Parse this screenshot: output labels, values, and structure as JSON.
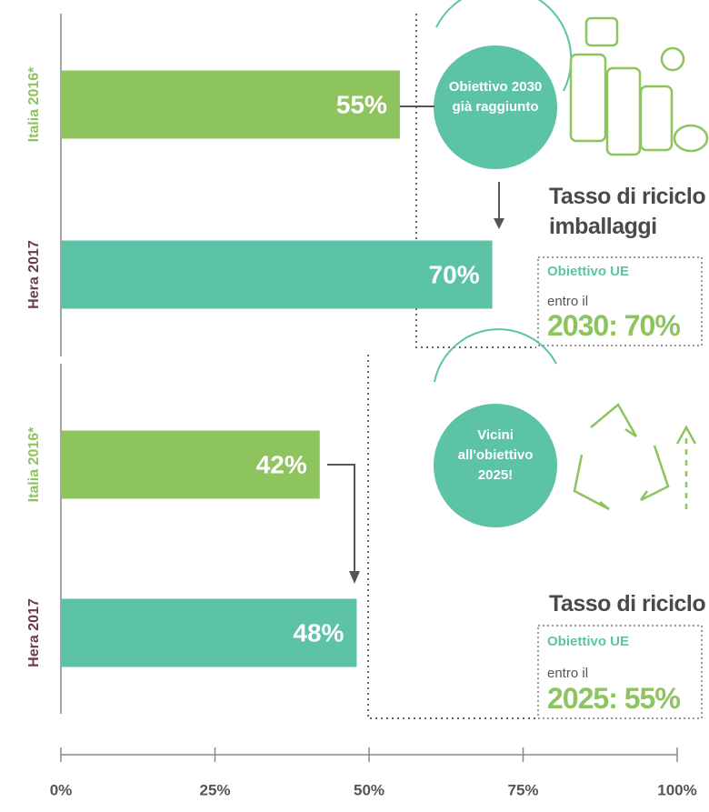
{
  "chart_data": [
    {
      "type": "bar",
      "orientation": "horizontal",
      "categories": [
        "Italia 2016*",
        "Hera 2017"
      ],
      "values": [
        55,
        70
      ],
      "value_labels": [
        "55%",
        "70%"
      ],
      "colors": [
        "#8dc45e",
        "#5cc3a7"
      ],
      "category_colors": [
        "#8dc45e",
        "#6e3b4c"
      ],
      "xlim": [
        0,
        100
      ],
      "annotations": {
        "bubble": "Obiettivo 2030 già raggiunto",
        "heading": "Tasso di riciclo imballaggi",
        "box_label": "Obiettivo UE",
        "box_text": "entro il",
        "box_target": "2030: 70%"
      }
    },
    {
      "type": "bar",
      "orientation": "horizontal",
      "categories": [
        "Italia 2016*",
        "Hera 2017"
      ],
      "values": [
        42,
        48
      ],
      "value_labels": [
        "42%",
        "48%"
      ],
      "colors": [
        "#8dc45e",
        "#5cc3a7"
      ],
      "category_colors": [
        "#8dc45e",
        "#6e3b4c"
      ],
      "xlim": [
        0,
        100
      ],
      "xticks": [
        {
          "value": 0,
          "label": "0%"
        },
        {
          "value": 25,
          "label": "25%"
        },
        {
          "value": 50,
          "label": "50%"
        },
        {
          "value": 75,
          "label": "75%"
        },
        {
          "value": 100,
          "label": "100%"
        }
      ],
      "annotations": {
        "bubble": "Vicini all'obiettivo 2025!",
        "heading": "Tasso di riciclo",
        "box_label": "Obiettivo UE",
        "box_text": "entro il",
        "box_target": "2025: 55%"
      }
    }
  ]
}
